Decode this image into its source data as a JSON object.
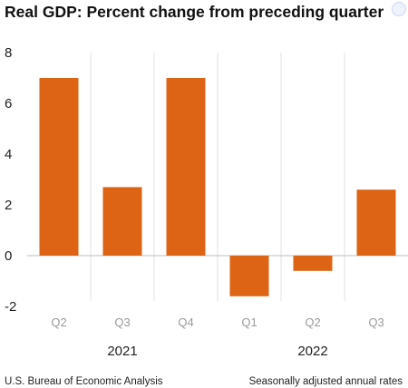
{
  "chart_data": {
    "type": "bar",
    "title": "Real GDP:  Percent change from preceding quarter",
    "categories": [
      "Q2",
      "Q3",
      "Q4",
      "Q1",
      "Q2",
      "Q3"
    ],
    "groups": [
      {
        "label": "2021",
        "categories": [
          "Q2",
          "Q3",
          "Q4"
        ]
      },
      {
        "label": "2022",
        "categories": [
          "Q1",
          "Q2",
          "Q3"
        ]
      }
    ],
    "values": [
      7.0,
      2.7,
      7.0,
      -1.6,
      -0.6,
      2.6
    ],
    "ylim": [
      -2,
      8
    ],
    "yticks": [
      "8",
      "6",
      "4",
      "2",
      "0",
      "-2"
    ],
    "bar_color": "#dd6415",
    "grid": false,
    "xlabel": "",
    "ylabel": ""
  },
  "footer": {
    "source": "U.S. Bureau of Economic Analysis",
    "note": "Seasonally adjusted annual rates"
  },
  "corner_icon": "overflow-badge-icon"
}
